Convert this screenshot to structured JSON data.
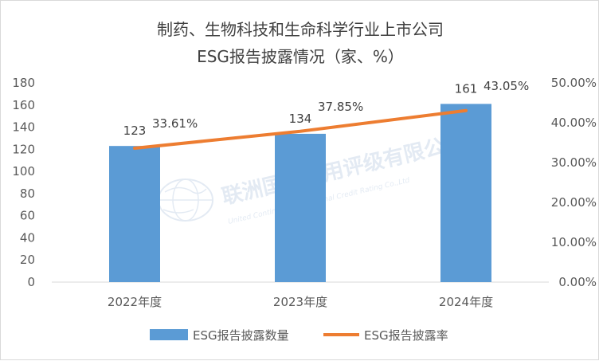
{
  "chart_data": {
    "type": "bar",
    "title": "制药、生物科技和生命科学行业上市公司",
    "subtitle": "ESG报告披露情况（家、%）",
    "categories": [
      "2022年度",
      "2023年度",
      "2024年度"
    ],
    "series": [
      {
        "name": "ESG报告披露数量",
        "type": "bar",
        "axis": "left",
        "values": [
          123,
          134,
          161
        ],
        "labels": [
          "123",
          "134",
          "161"
        ],
        "color": "#5B9BD5"
      },
      {
        "name": "ESG报告披露率",
        "type": "line",
        "axis": "right",
        "values": [
          33.61,
          37.85,
          43.05
        ],
        "labels": [
          "33.61%",
          "37.85%",
          "43.05%"
        ],
        "color": "#ED7D31"
      }
    ],
    "ylim": [
      0,
      180
    ],
    "y_ticks": [
      "0",
      "20",
      "40",
      "60",
      "80",
      "100",
      "120",
      "140",
      "160",
      "180"
    ],
    "y2lim": [
      0,
      50
    ],
    "y2_ticks": [
      "0.00%",
      "10.00%",
      "20.00%",
      "30.00%",
      "40.00%",
      "50.00%"
    ],
    "grid": false,
    "legend": "bottom"
  },
  "watermark": {
    "name_cn": "联洲国际信用评级有限公司",
    "name_en": "United Continent International Credit Rating Co.,Ltd"
  },
  "colors": {
    "bar": "#5B9BD5",
    "line": "#ED7D31",
    "axis": "#d9d9d9"
  }
}
